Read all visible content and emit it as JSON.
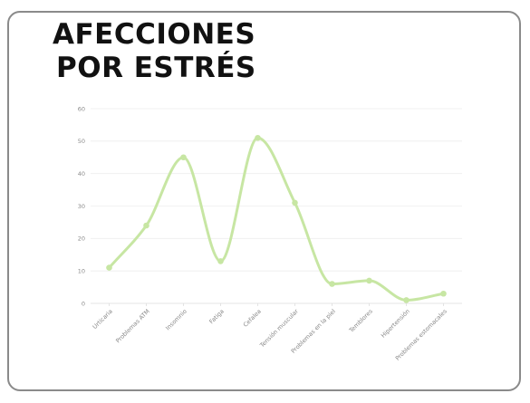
{
  "colors": {
    "frame_border": "#8a8a8a",
    "line": "#c7e6a3",
    "point": "#c7e6a3",
    "grid": "#eeeeee",
    "tick_text": "#8a8a8a",
    "title_text": "#111111"
  },
  "chart_data": {
    "type": "line",
    "title_lines": [
      "AFECCIONES",
      "POR ESTRÉS"
    ],
    "categories": [
      "Urticaria",
      "Problemas ATM",
      "Insomnio",
      "Fatiga",
      "Cefalea",
      "Tensión muscular",
      "Problemas en la piel",
      "Temblores",
      "Hipertensión",
      "Problemas estomacales"
    ],
    "series": [
      {
        "values": [
          11,
          24,
          45,
          13,
          51,
          31,
          6,
          7,
          1,
          3
        ]
      }
    ],
    "ylim": [
      0,
      60
    ],
    "yticks": [
      0,
      10,
      20,
      30,
      40,
      50,
      60
    ],
    "xlabel": "",
    "ylabel": "",
    "grid": true,
    "smooth": true,
    "legend": "none"
  }
}
